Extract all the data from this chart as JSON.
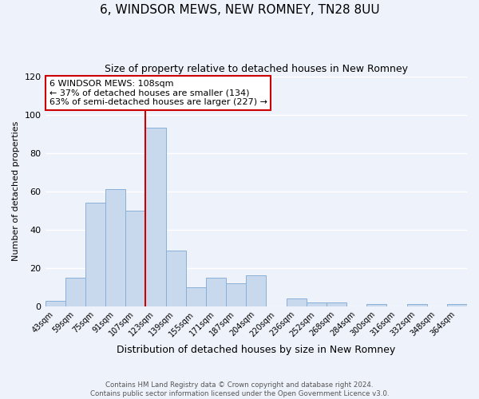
{
  "title": "6, WINDSOR MEWS, NEW ROMNEY, TN28 8UU",
  "subtitle": "Size of property relative to detached houses in New Romney",
  "xlabel": "Distribution of detached houses by size in New Romney",
  "ylabel": "Number of detached properties",
  "bin_labels": [
    "43sqm",
    "59sqm",
    "75sqm",
    "91sqm",
    "107sqm",
    "123sqm",
    "139sqm",
    "155sqm",
    "171sqm",
    "187sqm",
    "204sqm",
    "220sqm",
    "236sqm",
    "252sqm",
    "268sqm",
    "284sqm",
    "300sqm",
    "316sqm",
    "332sqm",
    "348sqm",
    "364sqm"
  ],
  "bar_values": [
    3,
    15,
    54,
    61,
    50,
    93,
    29,
    10,
    15,
    12,
    16,
    0,
    4,
    2,
    2,
    0,
    1,
    0,
    1,
    0,
    1
  ],
  "bar_color": "#c8d9ee",
  "bar_edge_color": "#8ab0d8",
  "marker_label": "6 WINDSOR MEWS: 108sqm",
  "marker_color": "#cc0000",
  "annotation_line1": "← 37% of detached houses are smaller (134)",
  "annotation_line2": "63% of semi-detached houses are larger (227) →",
  "ylim": [
    0,
    120
  ],
  "yticks": [
    0,
    20,
    40,
    60,
    80,
    100,
    120
  ],
  "footnote1": "Contains HM Land Registry data © Crown copyright and database right 2024.",
  "footnote2": "Contains public sector information licensed under the Open Government Licence v3.0.",
  "bg_color": "#eef2fb"
}
